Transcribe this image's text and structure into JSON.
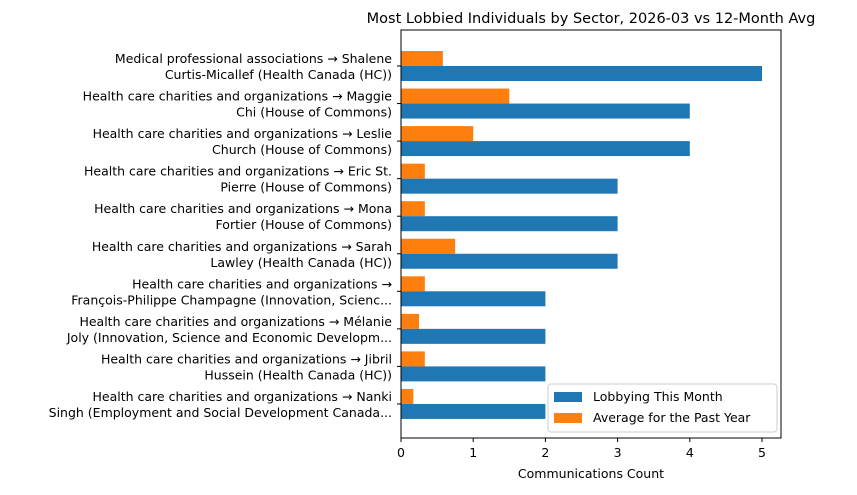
{
  "chart_data": {
    "type": "bar",
    "orientation": "horizontal",
    "title": "Most Lobbied Individuals by Sector, 2026-03 vs 12-Month Avg",
    "xlabel": "Communications Count",
    "ylabel": "",
    "xlim": [
      0,
      5.25
    ],
    "xticks": [
      "0",
      "1",
      "2",
      "3",
      "4",
      "5"
    ],
    "grid": false,
    "legend_position": "lower-right",
    "categories": [
      [
        "Medical professional associations → Shalene",
        "Curtis-Micallef (Health Canada (HC))"
      ],
      [
        "Health care charities and organizations → Maggie",
        "Chi (House of Commons)"
      ],
      [
        "Health care charities and organizations → Leslie",
        "Church (House of Commons)"
      ],
      [
        "Health care charities and organizations → Eric St.",
        "Pierre (House of Commons)"
      ],
      [
        "Health care charities and organizations → Mona",
        "Fortier (House of Commons)"
      ],
      [
        "Health care charities and organizations → Sarah",
        "Lawley (Health Canada (HC))"
      ],
      [
        "Health care charities and organizations →",
        "François-Philippe Champagne (Innovation, Scienc..."
      ],
      [
        "Health care charities and organizations → Mélanie",
        "Joly (Innovation, Science and Economic Developm..."
      ],
      [
        "Health care charities and organizations → Jibril",
        "Hussein (Health Canada (HC))"
      ],
      [
        "Health care charities and organizations → Nanki",
        "Singh (Employment and Social Development Canada..."
      ]
    ],
    "series": [
      {
        "name": "Lobbying This Month",
        "color": "#1f77b4",
        "values": [
          5,
          4,
          4,
          3,
          3,
          3,
          2,
          2,
          2,
          2
        ]
      },
      {
        "name": "Average for the Past Year",
        "color": "#ff7f0e",
        "values": [
          0.58,
          1.5,
          1.0,
          0.33,
          0.33,
          0.75,
          0.33,
          0.25,
          0.33,
          0.17
        ]
      }
    ]
  }
}
